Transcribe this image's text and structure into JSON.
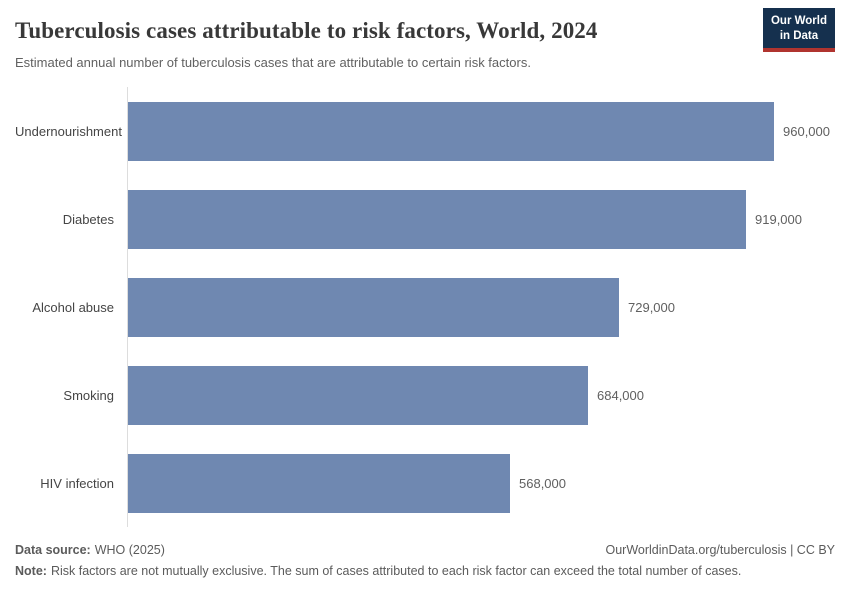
{
  "header": {
    "title": "Tuberculosis cases attributable to risk factors, World, 2024",
    "subtitle": "Estimated annual number of tuberculosis cases that are attributable to certain risk factors.",
    "logo": {
      "line1": "Our World",
      "line2": "in Data"
    }
  },
  "chart_data": {
    "type": "bar",
    "orientation": "horizontal",
    "title": "Tuberculosis cases attributable to risk factors, World, 2024",
    "categories": [
      "Undernourishment",
      "Diabetes",
      "Alcohol abuse",
      "Smoking",
      "HIV infection"
    ],
    "values": [
      960000,
      919000,
      729000,
      684000,
      568000
    ],
    "value_labels": [
      "960,000",
      "919,000",
      "729,000",
      "684,000",
      "568,000"
    ],
    "xlim": [
      0,
      960000
    ],
    "grid": false,
    "legend": "none",
    "bar_color": "#6f88b1"
  },
  "footer": {
    "source_label": "Data source:",
    "source_text": "WHO (2025)",
    "attribution": "OurWorldinData.org/tuberculosis | CC BY",
    "note_label": "Note:",
    "note_text": "Risk factors are not mutually exclusive. The sum of cases attributed to each risk factor can exceed the total number of cases."
  },
  "colors": {
    "bar": "#6f88b1",
    "axis": "#dddddd",
    "logo_bg": "#15304e",
    "logo_stripe": "#b0342f"
  }
}
